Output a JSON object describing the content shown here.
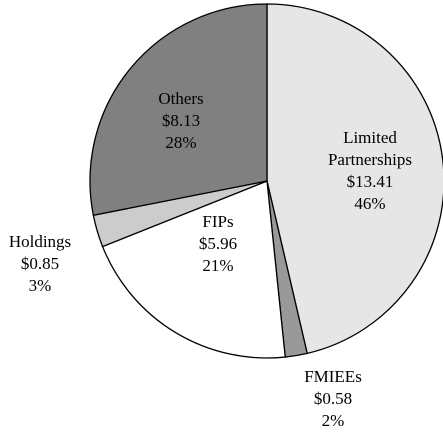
{
  "chart_data": {
    "type": "pie",
    "categories": [
      "Limited Partnerships",
      "FMIEEs",
      "FIPs",
      "Holdings",
      "Others"
    ],
    "values": [
      13.41,
      0.58,
      5.96,
      0.85,
      8.13
    ],
    "value_labels": [
      "$13.41",
      "$0.58",
      "$5.96",
      "$0.85",
      "$8.13"
    ],
    "percentages": [
      {
        "value": 46,
        "label": "46%"
      },
      {
        "value": 2,
        "label": "2%"
      },
      {
        "value": 21,
        "label": "21%"
      },
      {
        "value": 3,
        "label": "3%"
      },
      {
        "value": 28,
        "label": "28%"
      }
    ],
    "colors": [
      "#e6e6e6",
      "#999999",
      "#ffffff",
      "#cccccc",
      "#808080"
    ]
  }
}
